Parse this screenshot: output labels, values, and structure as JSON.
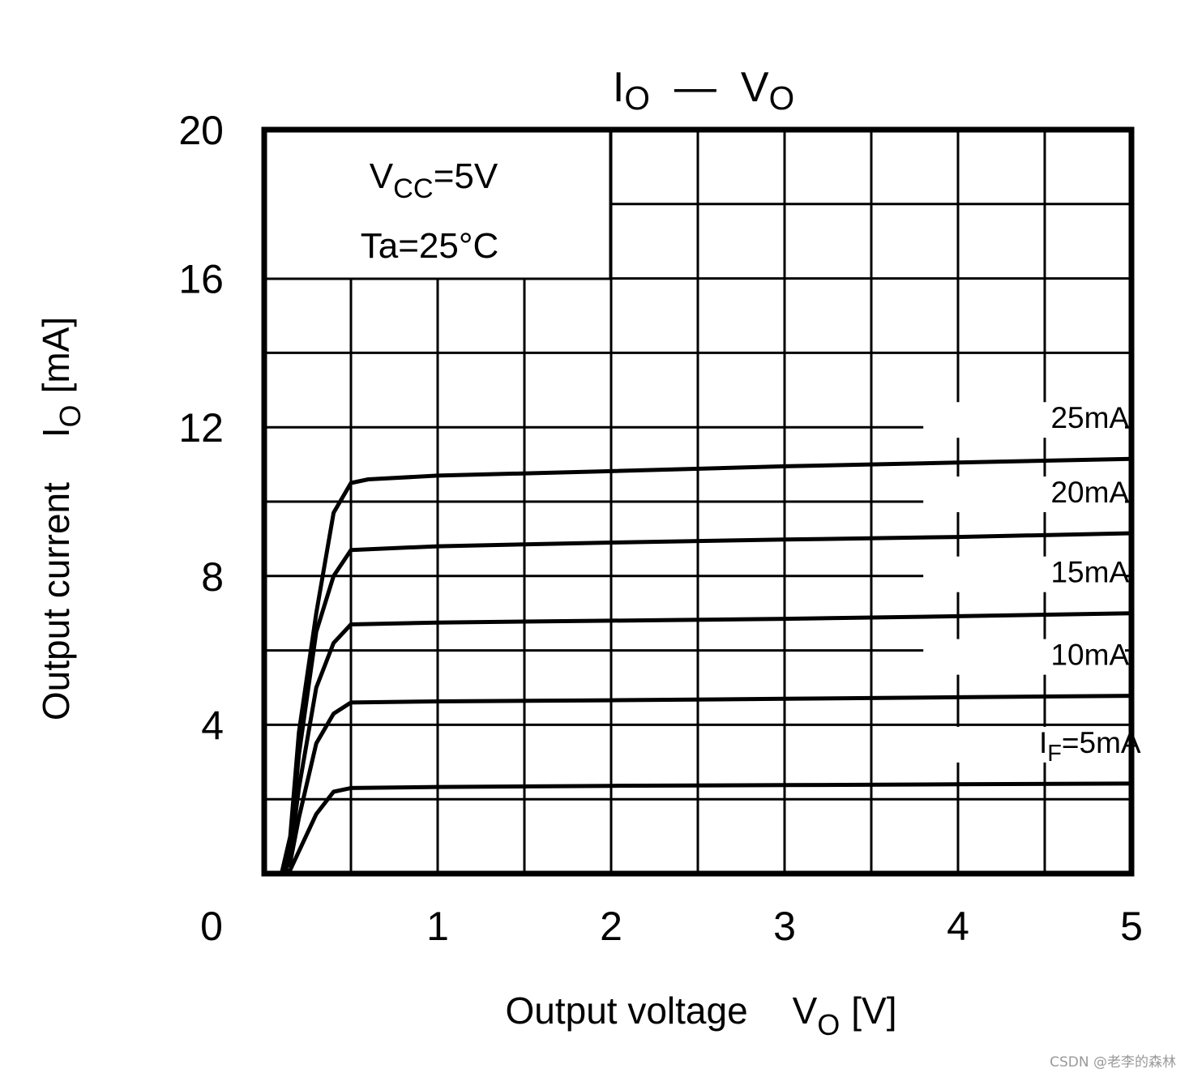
{
  "chart_data": {
    "type": "line",
    "title": {
      "main": "I",
      "sub": "O",
      "dash": "—",
      "main2": "V",
      "sub2": "O"
    },
    "xlabel": {
      "text": "Output voltage",
      "sym": "V",
      "sub": "O",
      "unit": "[V]"
    },
    "ylabel": {
      "text": "Output current",
      "sym": "I",
      "sub": "O",
      "unit": "[mA]"
    },
    "xlim": [
      0,
      5
    ],
    "ylim": [
      0,
      20
    ],
    "x_ticks": [
      "0",
      "1",
      "2",
      "3",
      "4",
      "5"
    ],
    "y_ticks": [
      "4",
      "8",
      "12",
      "16",
      "20"
    ],
    "grid_x_step": 0.5,
    "grid_y_step": 2,
    "conditions": {
      "line1_main": "V",
      "line1_sub": "CC",
      "line1_rest": "=5V",
      "line2": "Ta=25°C"
    },
    "series": [
      {
        "name": "I_F=5mA",
        "label_main": "I",
        "label_sub": "F",
        "label_rest": "=5mA",
        "x": [
          0.1,
          0.15,
          0.2,
          0.3,
          0.4,
          0.5,
          1,
          2,
          3,
          4,
          5
        ],
        "y": [
          0,
          0.1,
          0.6,
          1.6,
          2.2,
          2.3,
          2.33,
          2.36,
          2.38,
          2.4,
          2.42
        ]
      },
      {
        "name": "10mA",
        "label_main": "10mA",
        "label_sub": "",
        "label_rest": "",
        "x": [
          0.1,
          0.15,
          0.2,
          0.3,
          0.4,
          0.5,
          1,
          2,
          3,
          4,
          5
        ],
        "y": [
          0,
          0.3,
          1.5,
          3.5,
          4.3,
          4.6,
          4.63,
          4.66,
          4.7,
          4.74,
          4.78
        ]
      },
      {
        "name": "15mA",
        "label_main": "15mA",
        "label_sub": "",
        "label_rest": "",
        "x": [
          0.1,
          0.15,
          0.2,
          0.3,
          0.4,
          0.5,
          1,
          2,
          3,
          4,
          5
        ],
        "y": [
          0,
          0.5,
          2.3,
          5.0,
          6.2,
          6.7,
          6.75,
          6.8,
          6.85,
          6.92,
          7.0
        ]
      },
      {
        "name": "20mA",
        "label_main": "20mA",
        "label_sub": "",
        "label_rest": "",
        "x": [
          0.1,
          0.15,
          0.2,
          0.3,
          0.4,
          0.5,
          1,
          2,
          3,
          4,
          5
        ],
        "y": [
          0,
          0.8,
          3.2,
          6.5,
          8.0,
          8.7,
          8.8,
          8.9,
          8.98,
          9.05,
          9.15
        ]
      },
      {
        "name": "25mA",
        "label_main": "25mA",
        "label_sub": "",
        "label_rest": "",
        "x": [
          0.1,
          0.15,
          0.2,
          0.3,
          0.4,
          0.5,
          0.6,
          1,
          2,
          3,
          4,
          5
        ],
        "y": [
          0,
          1.0,
          3.8,
          7.0,
          9.7,
          10.5,
          10.6,
          10.7,
          10.82,
          10.95,
          11.05,
          11.15
        ]
      }
    ]
  },
  "watermark": "CSDN @老李的森林"
}
